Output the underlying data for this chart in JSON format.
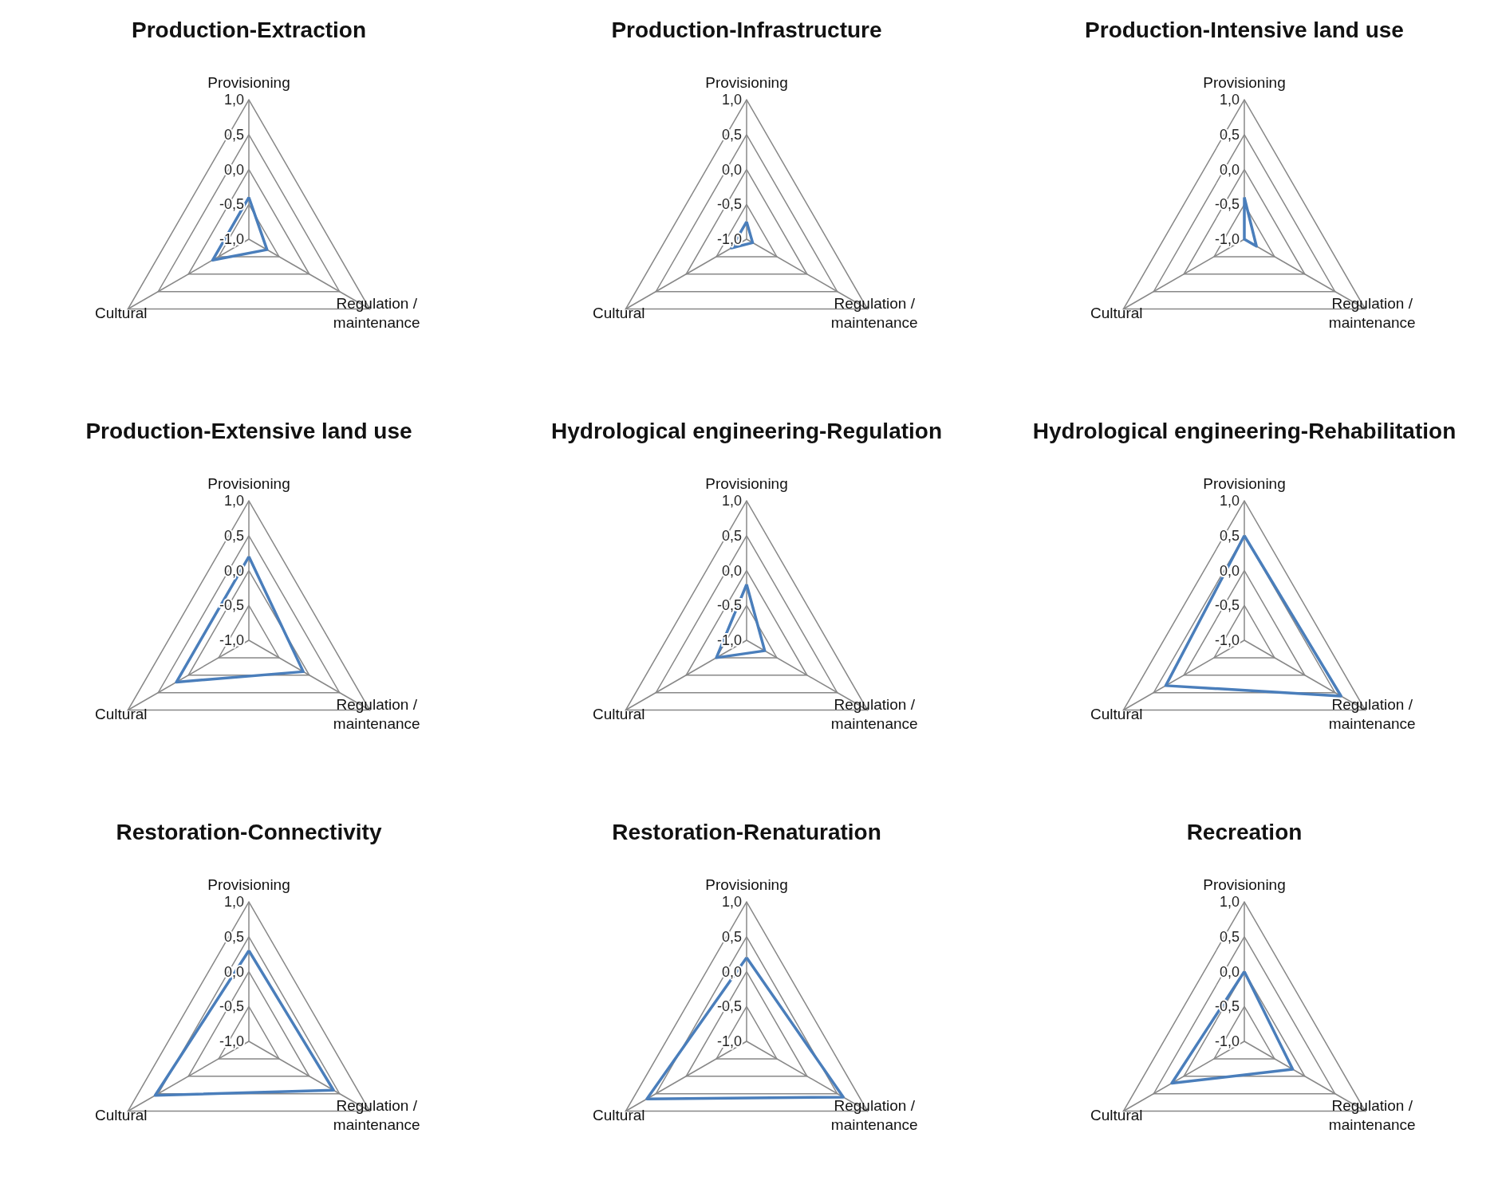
{
  "chart_data": [
    {
      "type": "radar",
      "title": "Production-Extraction",
      "categories": [
        "Provisioning",
        "Regulation / maintenance",
        "Cultural"
      ],
      "series": [
        {
          "color": "#4a7ebb",
          "values": [
            -0.4,
            -0.7,
            -0.4
          ]
        }
      ],
      "ylim": [
        -1,
        1
      ],
      "yticks": [
        {
          "value": -1,
          "label": "-1,0"
        },
        {
          "value": -0.5,
          "label": "-0,5"
        },
        {
          "value": 0,
          "label": "0,0"
        },
        {
          "value": 0.5,
          "label": "0,5"
        },
        {
          "value": 1,
          "label": "1,0"
        }
      ],
      "marker": "none"
    },
    {
      "type": "radar",
      "title": "Production-Infrastructure",
      "categories": [
        "Provisioning",
        "Regulation / maintenance",
        "Cultural"
      ],
      "series": [
        {
          "color": "#4a7ebb",
          "values": [
            -0.75,
            -0.9,
            -0.75
          ]
        }
      ],
      "ylim": [
        -1,
        1
      ],
      "yticks": [
        {
          "value": -1,
          "label": "-1,0"
        },
        {
          "value": -0.5,
          "label": "-0,5"
        },
        {
          "value": 0,
          "label": "0,0"
        },
        {
          "value": 0.5,
          "label": "0,5"
        },
        {
          "value": 1,
          "label": "1,0"
        }
      ],
      "marker": "none"
    },
    {
      "type": "radar",
      "title": "Production-Intensive land use",
      "categories": [
        "Provisioning",
        "Regulation / maintenance",
        "Cultural"
      ],
      "series": [
        {
          "color": "#4a7ebb",
          "values": [
            -0.4,
            -0.8,
            -1.0
          ]
        }
      ],
      "ylim": [
        -1,
        1
      ],
      "yticks": [
        {
          "value": -1,
          "label": "-1,0"
        },
        {
          "value": -0.5,
          "label": "-0,5"
        },
        {
          "value": 0,
          "label": "0,0"
        },
        {
          "value": 0.5,
          "label": "0,5"
        },
        {
          "value": 1,
          "label": "1,0"
        }
      ],
      "marker": "none"
    },
    {
      "type": "radar",
      "title": "Production-Extensive land use",
      "categories": [
        "Provisioning",
        "Regulation / maintenance",
        "Cultural"
      ],
      "series": [
        {
          "color": "#4a7ebb",
          "values": [
            0.2,
            -0.1,
            0.2
          ]
        }
      ],
      "ylim": [
        -1,
        1
      ],
      "yticks": [
        {
          "value": -1,
          "label": "-1,0"
        },
        {
          "value": -0.5,
          "label": "-0,5"
        },
        {
          "value": 0,
          "label": "0,0"
        },
        {
          "value": 0.5,
          "label": "0,5"
        },
        {
          "value": 1,
          "label": "1,0"
        }
      ],
      "marker": "none"
    },
    {
      "type": "radar",
      "title": "Hydrological engineering-Regulation",
      "categories": [
        "Provisioning",
        "Regulation / maintenance",
        "Cultural"
      ],
      "series": [
        {
          "color": "#4a7ebb",
          "values": [
            -0.2,
            -0.7,
            -0.5
          ]
        }
      ],
      "ylim": [
        -1,
        1
      ],
      "yticks": [
        {
          "value": -1,
          "label": "-1,0"
        },
        {
          "value": -0.5,
          "label": "-0,5"
        },
        {
          "value": 0,
          "label": "0,0"
        },
        {
          "value": 0.5,
          "label": "0,5"
        },
        {
          "value": 1,
          "label": "1,0"
        }
      ],
      "marker": "none"
    },
    {
      "type": "radar",
      "title": "Hydrological engineering-Rehabilitation",
      "categories": [
        "Provisioning",
        "Regulation / maintenance",
        "Cultural"
      ],
      "series": [
        {
          "color": "#4a7ebb",
          "values": [
            0.5,
            0.6,
            0.3
          ]
        }
      ],
      "ylim": [
        -1,
        1
      ],
      "yticks": [
        {
          "value": -1,
          "label": "-1,0"
        },
        {
          "value": -0.5,
          "label": "-0,5"
        },
        {
          "value": 0,
          "label": "0,0"
        },
        {
          "value": 0.5,
          "label": "0,5"
        },
        {
          "value": 1,
          "label": "1,0"
        }
      ],
      "marker": "none"
    },
    {
      "type": "radar",
      "title": "Restoration-Connectivity",
      "categories": [
        "Provisioning",
        "Regulation / maintenance",
        "Cultural"
      ],
      "series": [
        {
          "color": "#4a7ebb",
          "values": [
            0.3,
            0.4,
            0.55
          ]
        }
      ],
      "ylim": [
        -1,
        1
      ],
      "yticks": [
        {
          "value": -1,
          "label": "-1,0"
        },
        {
          "value": -0.5,
          "label": "-0,5"
        },
        {
          "value": 0,
          "label": "0,0"
        },
        {
          "value": 0.5,
          "label": "0,5"
        },
        {
          "value": 1,
          "label": "1,0"
        }
      ],
      "marker": "none"
    },
    {
      "type": "radar",
      "title": "Restoration-Renaturation",
      "categories": [
        "Provisioning",
        "Regulation / maintenance",
        "Cultural"
      ],
      "series": [
        {
          "color": "#4a7ebb",
          "values": [
            0.2,
            0.6,
            0.65
          ]
        }
      ],
      "ylim": [
        -1,
        1
      ],
      "yticks": [
        {
          "value": -1,
          "label": "-1,0"
        },
        {
          "value": -0.5,
          "label": "-0,5"
        },
        {
          "value": 0,
          "label": "0,0"
        },
        {
          "value": 0.5,
          "label": "0,5"
        },
        {
          "value": 1,
          "label": "1,0"
        }
      ],
      "marker": "none"
    },
    {
      "type": "radar",
      "title": "Recreation",
      "categories": [
        "Provisioning",
        "Regulation / maintenance",
        "Cultural"
      ],
      "series": [
        {
          "color": "#4a7ebb",
          "values": [
            0.0,
            -0.2,
            0.2
          ]
        }
      ],
      "ylim": [
        -1,
        1
      ],
      "yticks": [
        {
          "value": -1,
          "label": "-1,0"
        },
        {
          "value": -0.5,
          "label": "-0,5"
        },
        {
          "value": 0,
          "label": "0,0"
        },
        {
          "value": 0.5,
          "label": "0,5"
        },
        {
          "value": 1,
          "label": "1,0"
        }
      ],
      "marker": "none"
    }
  ]
}
